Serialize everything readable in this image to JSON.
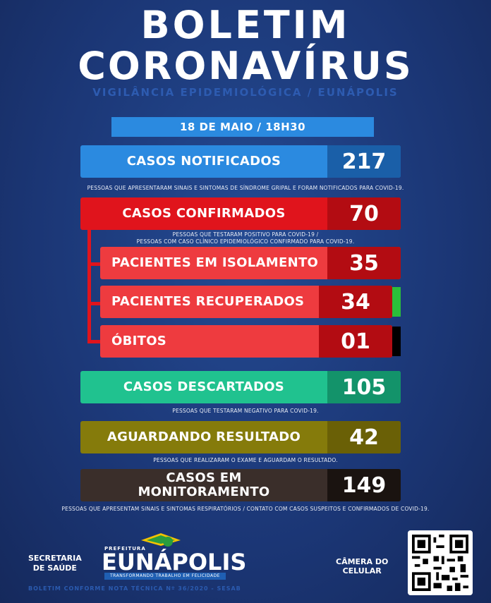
{
  "header": {
    "title_line1": "BOLETIM",
    "title_line2": "CORONAVÍRUS",
    "subtitle": "VIGILÂNCIA EPIDEMIOLÓGICA / EUNÁPOLIS"
  },
  "date": "18 DE MAIO / 18H30",
  "stats": {
    "notificados": {
      "label": "CASOS NOTIFICADOS",
      "value": "217",
      "note": "PESSOAS QUE APRESENTARAM SINAIS E SINTOMAS DE SÍNDROME GRIPAL E FORAM NOTIFICADOS PARA COVID-19."
    },
    "confirmados": {
      "label": "CASOS CONFIRMADOS",
      "value": "70",
      "note_line1": "PESSOAS QUE TESTARAM POSITIVO PARA COVID-19 /",
      "note_line2": "PESSOAS COM CASO CLÍNICO EPIDEMIOLÓGICO CONFIRMADO PARA COVID-19."
    },
    "isolamento": {
      "label": "PACIENTES EM ISOLAMENTO",
      "value": "35"
    },
    "recuperados": {
      "label": "PACIENTES RECUPERADOS",
      "value": "34"
    },
    "obitos": {
      "label": "ÓBITOS",
      "value": "01"
    },
    "descartados": {
      "label": "CASOS DESCARTADOS",
      "value": "105",
      "note": "PESSOAS QUE TESTARAM NEGATIVO PARA COVID-19."
    },
    "aguardando": {
      "label": "AGUARDANDO RESULTADO",
      "value": "42",
      "note": "PESSOAS QUE REALIZARAM O EXAME E AGUARDAM O RESULTADO."
    },
    "monitoramento": {
      "label_line1": "CASOS EM",
      "label_line2": "MONITORAMENTO",
      "value": "149",
      "note": "PESSOAS QUE APRESENTAM SINAIS E SINTOMAS RESPIRATÓRIOS / CONTATO COM CASOS SUSPEITOS  E CONFIRMADOS DE COVID-19."
    }
  },
  "footer": {
    "secretaria_line1": "SECRETARIA",
    "secretaria_line2": "DE SAÚDE",
    "prefeitura": "PREFEITURA",
    "city": "EUNÁPOLIS",
    "slogan": "TRANSFORMANDO TRABALHO EM FELICIDADE",
    "camera_line1": "CÂMERA DO",
    "camera_line2": "CELULAR",
    "bottom_note": "BOLETIM CONFORME NOTA TÉCNICA Nº 36/2020 - SESAB"
  },
  "colors": {
    "background": "#1d3a7c",
    "notificados": "#2b8ae0",
    "confirmados": "#e0141c",
    "subcase": "#ee3b3f",
    "value_dark_red": "#b30c12",
    "recuperados_marker": "#2bbf3a",
    "obitos_marker": "#000000",
    "descartados": "#20c28f",
    "aguardando": "#857b0b",
    "monitoramento": "#3a2e2a"
  }
}
